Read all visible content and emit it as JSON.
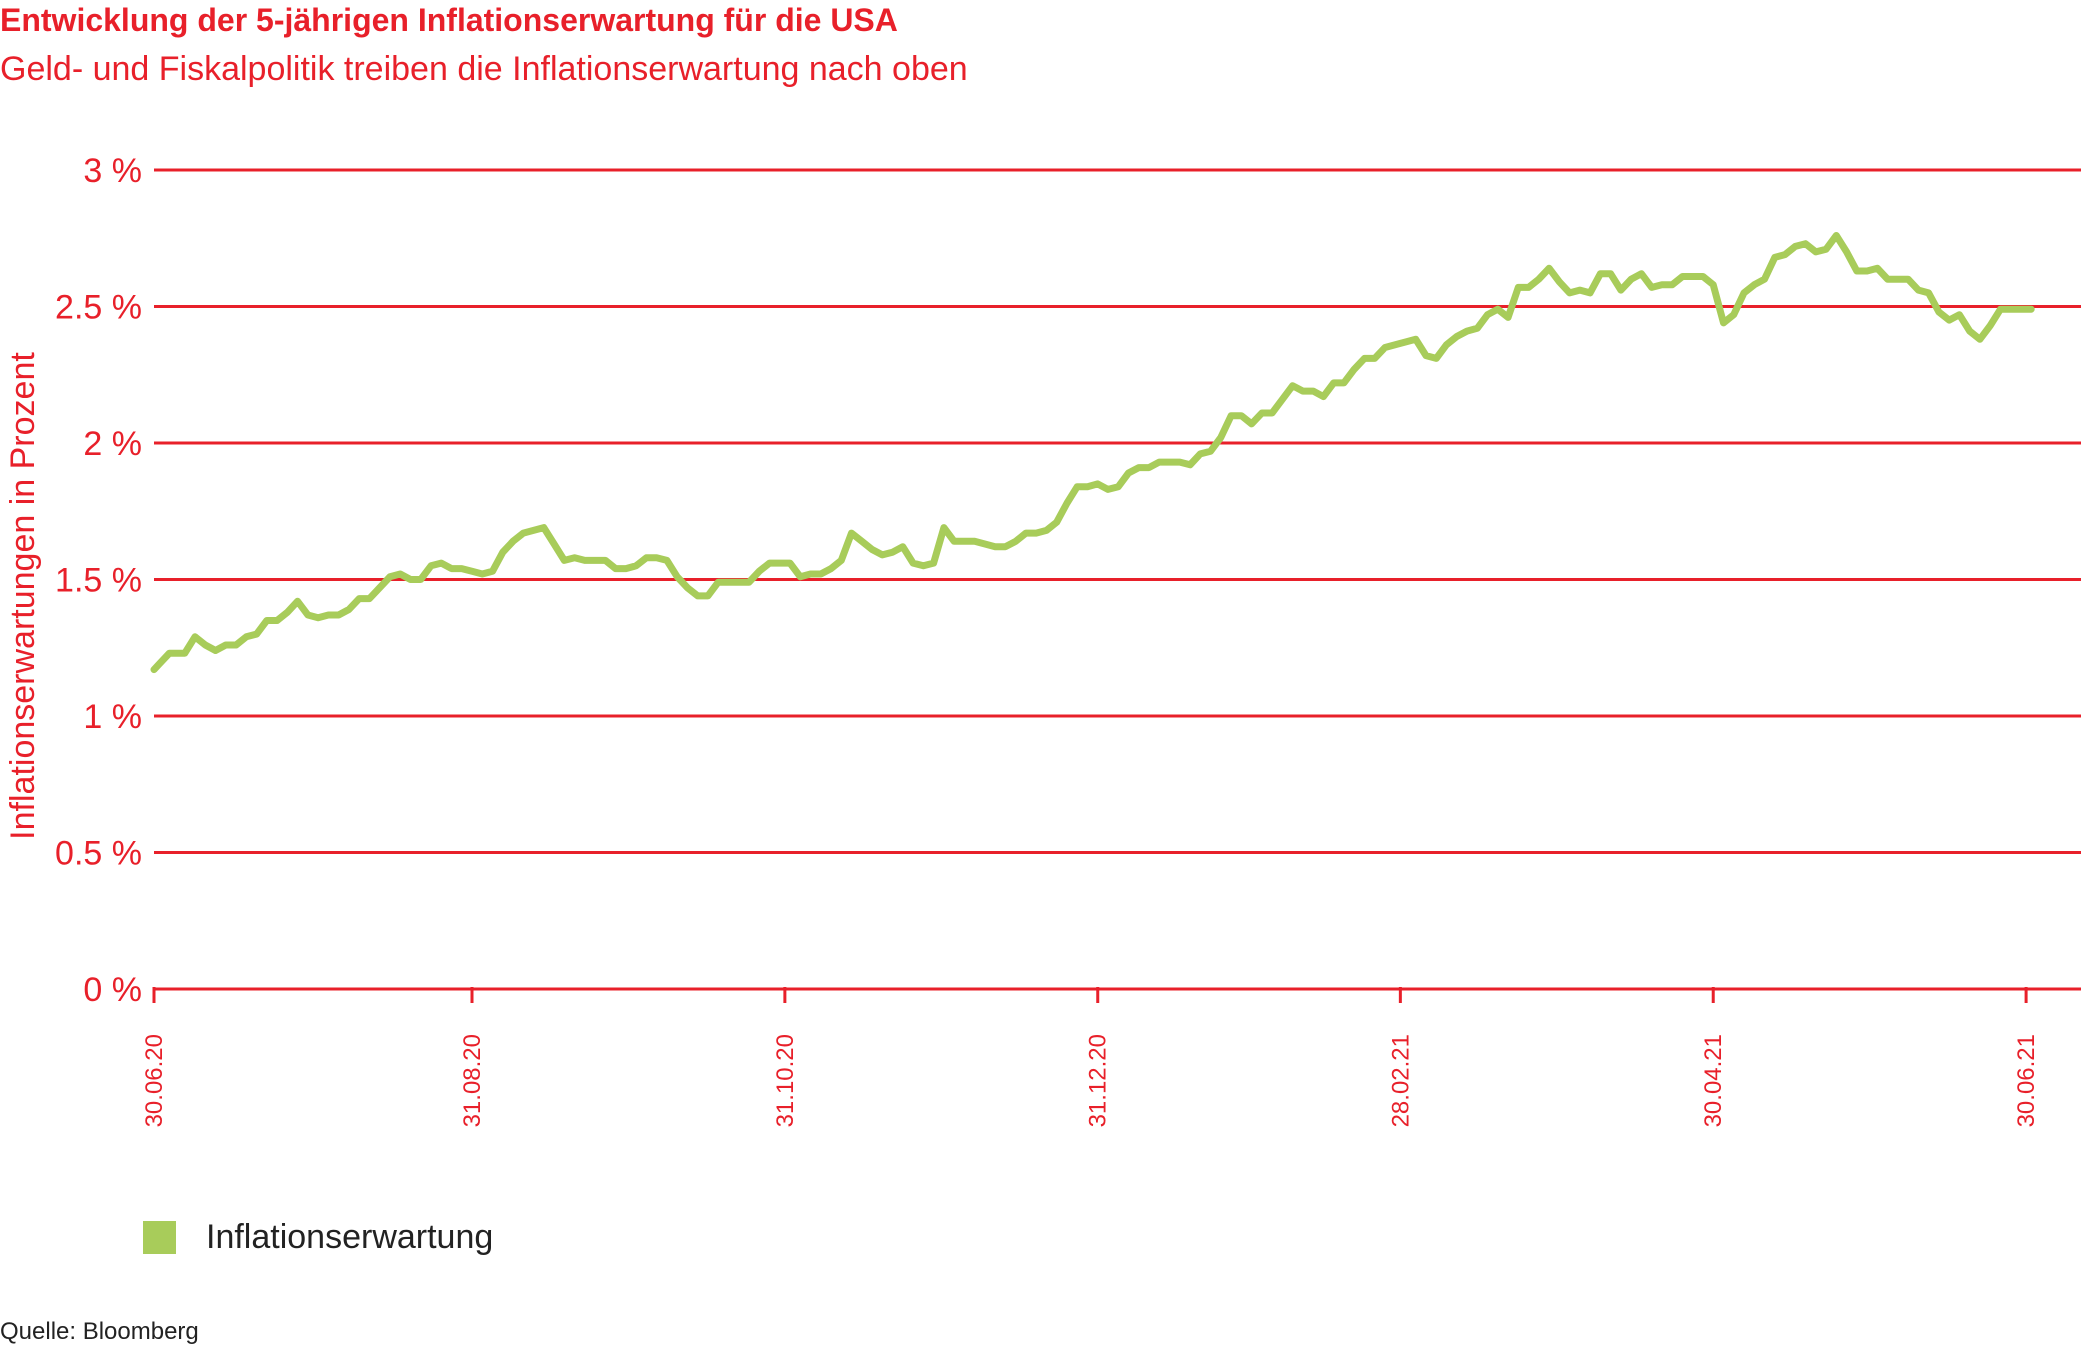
{
  "header": {
    "title": "Entwicklung der 5-jährigen Inflationserwartung für die USA",
    "subtitle": "Geld- und Fiskalpolitik treiben die Inflationserwartung nach oben"
  },
  "source": "Quelle: Bloomberg",
  "colors": {
    "accent": "#e8202a",
    "series": "#a8cc5a",
    "text": "#222222"
  },
  "chart_data": {
    "type": "line",
    "ylabel": "Inflationserwartungen in Prozent",
    "ylim": [
      0,
      3
    ],
    "yticks": [
      {
        "value": 0,
        "label": "0 %"
      },
      {
        "value": 0.5,
        "label": "0.5 %"
      },
      {
        "value": 1,
        "label": "1 %"
      },
      {
        "value": 1.5,
        "label": "1.5 %"
      },
      {
        "value": 2,
        "label": "2 %"
      },
      {
        "value": 2.5,
        "label": "2.5 %"
      },
      {
        "value": 3,
        "label": "3 %"
      }
    ],
    "xlim": [
      "2020-06-30",
      "2021-07-02"
    ],
    "xticks": [
      {
        "date": "2020-06-30",
        "label": "30.06.20"
      },
      {
        "date": "2020-08-31",
        "label": "31.08.20"
      },
      {
        "date": "2020-10-31",
        "label": "31.10.20"
      },
      {
        "date": "2020-12-31",
        "label": "31.12.20"
      },
      {
        "date": "2021-02-28",
        "label": "28.02.21"
      },
      {
        "date": "2021-04-30",
        "label": "30.04.21"
      },
      {
        "date": "2021-06-30",
        "label": "30.06.21"
      }
    ],
    "grid": true,
    "legend_position": "bottom-left",
    "series": [
      {
        "name": "Inflationserwartung",
        "color": "#a8cc5a",
        "points": [
          [
            "2020-06-30",
            1.17
          ],
          [
            "2020-07-01",
            1.19
          ],
          [
            "2020-07-03",
            1.23
          ],
          [
            "2020-07-06",
            1.23
          ],
          [
            "2020-07-08",
            1.29
          ],
          [
            "2020-07-10",
            1.26
          ],
          [
            "2020-07-12",
            1.24
          ],
          [
            "2020-07-14",
            1.26
          ],
          [
            "2020-07-16",
            1.26
          ],
          [
            "2020-07-18",
            1.29
          ],
          [
            "2020-07-20",
            1.3
          ],
          [
            "2020-07-22",
            1.35
          ],
          [
            "2020-07-24",
            1.35
          ],
          [
            "2020-07-26",
            1.38
          ],
          [
            "2020-07-28",
            1.42
          ],
          [
            "2020-07-30",
            1.37
          ],
          [
            "2020-08-01",
            1.36
          ],
          [
            "2020-08-03",
            1.37
          ],
          [
            "2020-08-05",
            1.37
          ],
          [
            "2020-08-07",
            1.39
          ],
          [
            "2020-08-09",
            1.43
          ],
          [
            "2020-08-11",
            1.43
          ],
          [
            "2020-08-13",
            1.47
          ],
          [
            "2020-08-15",
            1.51
          ],
          [
            "2020-08-17",
            1.52
          ],
          [
            "2020-08-19",
            1.5
          ],
          [
            "2020-08-21",
            1.5
          ],
          [
            "2020-08-23",
            1.55
          ],
          [
            "2020-08-25",
            1.56
          ],
          [
            "2020-08-27",
            1.54
          ],
          [
            "2020-08-29",
            1.54
          ],
          [
            "2020-08-31",
            1.53
          ],
          [
            "2020-09-02",
            1.52
          ],
          [
            "2020-09-04",
            1.53
          ],
          [
            "2020-09-06",
            1.6
          ],
          [
            "2020-09-08",
            1.64
          ],
          [
            "2020-09-10",
            1.67
          ],
          [
            "2020-09-12",
            1.68
          ],
          [
            "2020-09-14",
            1.69
          ],
          [
            "2020-09-16",
            1.63
          ],
          [
            "2020-09-18",
            1.57
          ],
          [
            "2020-09-20",
            1.58
          ],
          [
            "2020-09-22",
            1.57
          ],
          [
            "2020-09-24",
            1.57
          ],
          [
            "2020-09-26",
            1.57
          ],
          [
            "2020-09-28",
            1.54
          ],
          [
            "2020-09-30",
            1.54
          ],
          [
            "2020-10-02",
            1.55
          ],
          [
            "2020-10-04",
            1.58
          ],
          [
            "2020-10-06",
            1.58
          ],
          [
            "2020-10-08",
            1.57
          ],
          [
            "2020-10-10",
            1.51
          ],
          [
            "2020-10-12",
            1.47
          ],
          [
            "2020-10-14",
            1.44
          ],
          [
            "2020-10-16",
            1.44
          ],
          [
            "2020-10-18",
            1.49
          ],
          [
            "2020-10-20",
            1.49
          ],
          [
            "2020-10-22",
            1.49
          ],
          [
            "2020-10-24",
            1.49
          ],
          [
            "2020-10-26",
            1.53
          ],
          [
            "2020-10-28",
            1.56
          ],
          [
            "2020-10-30",
            1.56
          ],
          [
            "2020-11-01",
            1.56
          ],
          [
            "2020-11-03",
            1.51
          ],
          [
            "2020-11-05",
            1.52
          ],
          [
            "2020-11-07",
            1.52
          ],
          [
            "2020-11-09",
            1.54
          ],
          [
            "2020-11-11",
            1.57
          ],
          [
            "2020-11-13",
            1.67
          ],
          [
            "2020-11-15",
            1.64
          ],
          [
            "2020-11-17",
            1.61
          ],
          [
            "2020-11-19",
            1.59
          ],
          [
            "2020-11-21",
            1.6
          ],
          [
            "2020-11-23",
            1.62
          ],
          [
            "2020-11-25",
            1.56
          ],
          [
            "2020-11-27",
            1.55
          ],
          [
            "2020-11-29",
            1.56
          ],
          [
            "2020-12-01",
            1.69
          ],
          [
            "2020-12-03",
            1.64
          ],
          [
            "2020-12-05",
            1.64
          ],
          [
            "2020-12-07",
            1.64
          ],
          [
            "2020-12-09",
            1.63
          ],
          [
            "2020-12-11",
            1.62
          ],
          [
            "2020-12-13",
            1.62
          ],
          [
            "2020-12-15",
            1.64
          ],
          [
            "2020-12-17",
            1.67
          ],
          [
            "2020-12-19",
            1.67
          ],
          [
            "2020-12-21",
            1.68
          ],
          [
            "2020-12-23",
            1.71
          ],
          [
            "2020-12-25",
            1.78
          ],
          [
            "2020-12-27",
            1.84
          ],
          [
            "2020-12-29",
            1.84
          ],
          [
            "2020-12-31",
            1.85
          ],
          [
            "2021-01-02",
            1.83
          ],
          [
            "2021-01-04",
            1.84
          ],
          [
            "2021-01-06",
            1.89
          ],
          [
            "2021-01-08",
            1.91
          ],
          [
            "2021-01-10",
            1.91
          ],
          [
            "2021-01-12",
            1.93
          ],
          [
            "2021-01-14",
            1.93
          ],
          [
            "2021-01-16",
            1.93
          ],
          [
            "2021-01-18",
            1.92
          ],
          [
            "2021-01-20",
            1.96
          ],
          [
            "2021-01-22",
            1.97
          ],
          [
            "2021-01-24",
            2.02
          ],
          [
            "2021-01-26",
            2.1
          ],
          [
            "2021-01-28",
            2.1
          ],
          [
            "2021-01-30",
            2.07
          ],
          [
            "2021-02-01",
            2.11
          ],
          [
            "2021-02-03",
            2.11
          ],
          [
            "2021-02-05",
            2.16
          ],
          [
            "2021-02-07",
            2.21
          ],
          [
            "2021-02-09",
            2.19
          ],
          [
            "2021-02-11",
            2.19
          ],
          [
            "2021-02-13",
            2.17
          ],
          [
            "2021-02-15",
            2.22
          ],
          [
            "2021-02-17",
            2.22
          ],
          [
            "2021-02-19",
            2.27
          ],
          [
            "2021-02-21",
            2.31
          ],
          [
            "2021-02-23",
            2.31
          ],
          [
            "2021-02-25",
            2.35
          ],
          [
            "2021-02-27",
            2.36
          ],
          [
            "2021-03-01",
            2.37
          ],
          [
            "2021-03-03",
            2.38
          ],
          [
            "2021-03-05",
            2.32
          ],
          [
            "2021-03-07",
            2.31
          ],
          [
            "2021-03-09",
            2.36
          ],
          [
            "2021-03-11",
            2.39
          ],
          [
            "2021-03-13",
            2.41
          ],
          [
            "2021-03-15",
            2.42
          ],
          [
            "2021-03-17",
            2.47
          ],
          [
            "2021-03-19",
            2.49
          ],
          [
            "2021-03-21",
            2.46
          ],
          [
            "2021-03-23",
            2.57
          ],
          [
            "2021-03-25",
            2.57
          ],
          [
            "2021-03-27",
            2.6
          ],
          [
            "2021-03-29",
            2.64
          ],
          [
            "2021-03-31",
            2.59
          ],
          [
            "2021-04-02",
            2.55
          ],
          [
            "2021-04-04",
            2.56
          ],
          [
            "2021-04-06",
            2.55
          ],
          [
            "2021-04-08",
            2.62
          ],
          [
            "2021-04-10",
            2.62
          ],
          [
            "2021-04-12",
            2.56
          ],
          [
            "2021-04-14",
            2.6
          ],
          [
            "2021-04-16",
            2.62
          ],
          [
            "2021-04-18",
            2.57
          ],
          [
            "2021-04-20",
            2.58
          ],
          [
            "2021-04-22",
            2.58
          ],
          [
            "2021-04-24",
            2.61
          ],
          [
            "2021-04-26",
            2.61
          ],
          [
            "2021-04-28",
            2.61
          ],
          [
            "2021-04-30",
            2.58
          ],
          [
            "2021-05-02",
            2.44
          ],
          [
            "2021-05-04",
            2.47
          ],
          [
            "2021-05-06",
            2.55
          ],
          [
            "2021-05-08",
            2.58
          ],
          [
            "2021-05-10",
            2.6
          ],
          [
            "2021-05-12",
            2.68
          ],
          [
            "2021-05-14",
            2.69
          ],
          [
            "2021-05-16",
            2.72
          ],
          [
            "2021-05-18",
            2.73
          ],
          [
            "2021-05-20",
            2.7
          ],
          [
            "2021-05-22",
            2.71
          ],
          [
            "2021-05-24",
            2.76
          ],
          [
            "2021-05-26",
            2.7
          ],
          [
            "2021-05-28",
            2.63
          ],
          [
            "2021-05-30",
            2.63
          ],
          [
            "2021-06-01",
            2.64
          ],
          [
            "2021-06-03",
            2.6
          ],
          [
            "2021-06-05",
            2.6
          ],
          [
            "2021-06-07",
            2.6
          ],
          [
            "2021-06-09",
            2.56
          ],
          [
            "2021-06-11",
            2.55
          ],
          [
            "2021-06-13",
            2.48
          ],
          [
            "2021-06-15",
            2.45
          ],
          [
            "2021-06-17",
            2.47
          ],
          [
            "2021-06-19",
            2.41
          ],
          [
            "2021-06-21",
            2.38
          ],
          [
            "2021-06-23",
            2.43
          ],
          [
            "2021-06-25",
            2.49
          ],
          [
            "2021-06-27",
            2.49
          ],
          [
            "2021-06-29",
            2.49
          ],
          [
            "2021-07-01",
            2.49
          ]
        ]
      }
    ]
  }
}
